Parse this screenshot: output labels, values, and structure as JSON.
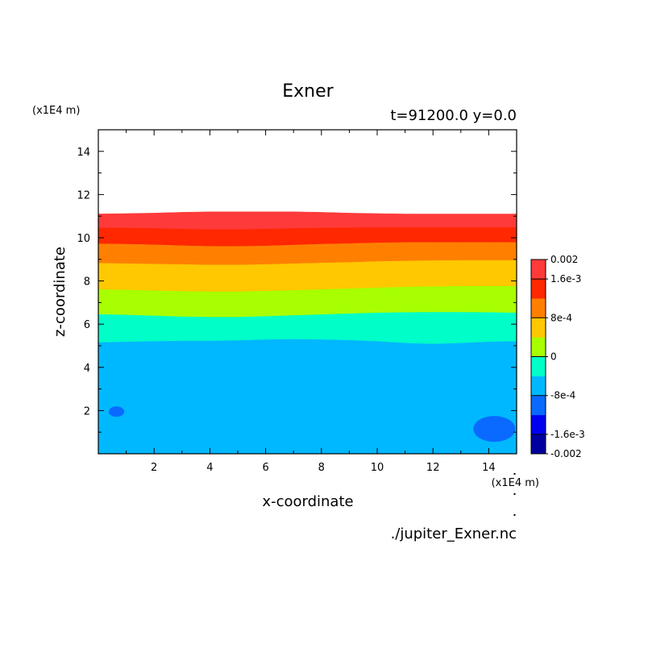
{
  "chart_data": {
    "type": "heatmap",
    "title": "Exner",
    "subtitle": "t=91200.0 y=0.0",
    "xlabel": "x-coordinate",
    "ylabel": "z-coordinate",
    "x_unit": "(x1E4 m)",
    "y_unit": "(x1E4 m)",
    "xlim": [
      0,
      15
    ],
    "ylim": [
      0,
      15
    ],
    "xticks": [
      2,
      4,
      6,
      8,
      10,
      12,
      14
    ],
    "yticks": [
      2,
      4,
      6,
      8,
      10,
      12,
      14
    ],
    "source_file": "./jupiter_Exner.nc",
    "colorbar": {
      "range": [
        -0.002,
        0.002
      ],
      "tick_values": [
        0.002,
        0.0016,
        0.0008,
        0,
        -0.0008,
        -0.0016,
        -0.002
      ],
      "tick_labels": [
        "0.002",
        "1.6e-3",
        "8e-4",
        "0",
        "-8e-4",
        "-1.6e-3",
        "-0.002"
      ],
      "colors": [
        "#0000a0",
        "#0000f0",
        "#0a6aff",
        "#00b8ff",
        "#00ffc8",
        "#a8ff00",
        "#ffc800",
        "#ff8000",
        "#ff2800",
        "#ff3a3a"
      ]
    },
    "bands": [
      {
        "level_low": -0.0008,
        "level_high": -0.0004,
        "color": "#00b8ff",
        "z_bottom": 0,
        "z_top": [
          5.15,
          5.18,
          5.2,
          5.22,
          5.22,
          5.24,
          5.28,
          5.3,
          5.28,
          5.25,
          5.2,
          5.12,
          5.08,
          5.12,
          5.18,
          5.2
        ]
      },
      {
        "level_low": -0.0004,
        "level_high": 0,
        "color": "#00ffc8",
        "z_top": [
          6.45,
          6.42,
          6.38,
          6.34,
          6.32,
          6.32,
          6.36,
          6.4,
          6.44,
          6.48,
          6.52,
          6.54,
          6.55,
          6.55,
          6.54,
          6.52
        ]
      },
      {
        "level_low": 0,
        "level_high": 0.0004,
        "color": "#a8ff00",
        "z_top": [
          7.6,
          7.58,
          7.55,
          7.52,
          7.5,
          7.5,
          7.53,
          7.56,
          7.6,
          7.64,
          7.68,
          7.72,
          7.74,
          7.75,
          7.75,
          7.75
        ]
      },
      {
        "level_low": 0.0004,
        "level_high": 0.0008,
        "color": "#ffc800",
        "z_top": [
          8.82,
          8.8,
          8.78,
          8.76,
          8.74,
          8.74,
          8.76,
          8.8,
          8.83,
          8.86,
          8.9,
          8.92,
          8.94,
          8.95,
          8.95,
          8.95
        ]
      },
      {
        "level_low": 0.0008,
        "level_high": 0.0012,
        "color": "#ff8000",
        "z_top": [
          9.72,
          9.7,
          9.67,
          9.63,
          9.6,
          9.6,
          9.62,
          9.66,
          9.7,
          9.73,
          9.76,
          9.78,
          9.78,
          9.78,
          9.78,
          9.78
        ]
      },
      {
        "level_low": 0.0012,
        "level_high": 0.0016,
        "color": "#ff2800",
        "z_top": [
          10.45,
          10.45,
          10.43,
          10.4,
          10.38,
          10.38,
          10.4,
          10.43,
          10.45,
          10.46,
          10.47,
          10.47,
          10.47,
          10.47,
          10.47,
          10.47
        ]
      },
      {
        "level_low": 0.0016,
        "level_high": 0.002,
        "color": "#ff3a3a",
        "z_top": [
          11.1,
          11.12,
          11.14,
          11.18,
          11.2,
          11.2,
          11.2,
          11.2,
          11.18,
          11.14,
          11.12,
          11.1,
          11.1,
          11.1,
          11.1,
          11.1
        ]
      }
    ],
    "blobs": [
      {
        "color": "#0a6aff",
        "cx": 0.65,
        "cz": 1.95,
        "rx": 0.28,
        "rz": 0.24
      },
      {
        "color": "#0a6aff",
        "cx": 14.2,
        "cz": 1.15,
        "rx": 0.75,
        "rz": 0.6
      }
    ]
  }
}
